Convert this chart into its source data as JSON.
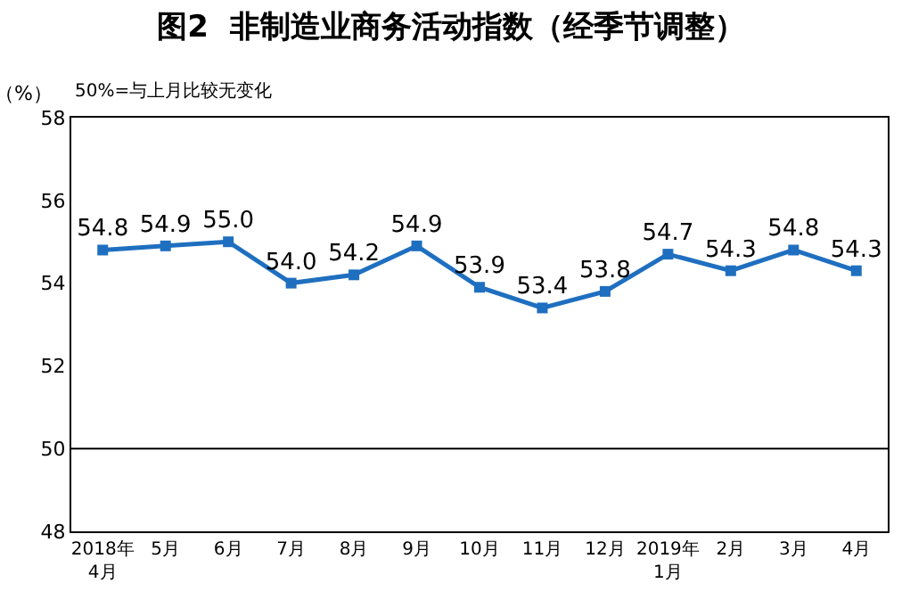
{
  "chart_data": {
    "type": "line",
    "title": "图2  非制造业商务活动指数（经季节调整）",
    "ylabel": "（%）",
    "annotations": [
      "50%=与上月比较无变化"
    ],
    "categories": [
      "2018年\n4月",
      "5月",
      "6月",
      "7月",
      "8月",
      "9月",
      "10月",
      "11月",
      "12月",
      "2019年\n1月",
      "2月",
      "3月",
      "4月"
    ],
    "series": [
      {
        "color": "#1f6fc0",
        "values": [
          54.8,
          54.9,
          55.0,
          54.0,
          54.2,
          54.9,
          53.9,
          53.4,
          53.8,
          54.7,
          54.3,
          54.8,
          54.3
        ],
        "value_labels": [
          "54.8",
          "54.9",
          "55.0",
          "54.0",
          "54.2",
          "54.9",
          "53.9",
          "53.4",
          "53.8",
          "54.7",
          "54.3",
          "54.8",
          "54.3"
        ]
      }
    ],
    "ylim": [
      48,
      58
    ],
    "yticks": [
      48,
      50,
      52,
      54,
      56,
      58
    ],
    "grid": false,
    "marker": "square",
    "line_style": "solid",
    "ref_lines": [
      {
        "axis": "y",
        "value": 50,
        "color": "#000000"
      }
    ]
  }
}
